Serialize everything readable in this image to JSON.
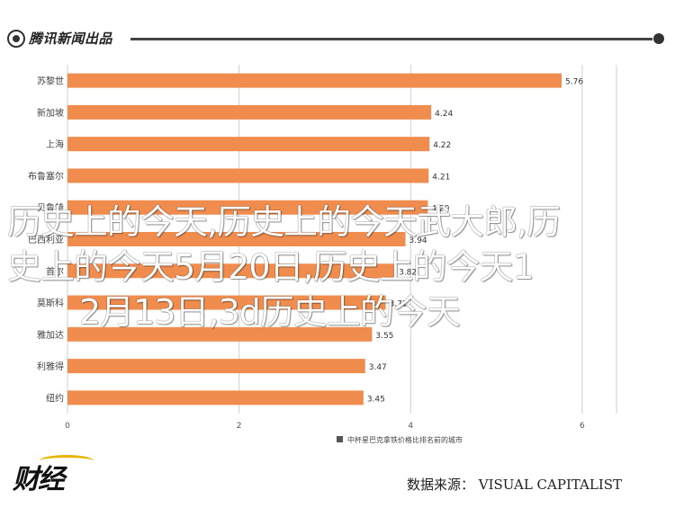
{
  "header": {
    "logo_text": "腾讯新闻出品"
  },
  "chart_data": {
    "type": "bar",
    "orientation": "horizontal",
    "categories": [
      "苏黎世",
      "新加坡",
      "上海",
      "布鲁塞尔",
      "贝鲁特",
      "巴西利亚",
      "首尔",
      "莫斯科",
      "雅加达",
      "利雅得",
      "纽约"
    ],
    "values": [
      5.76,
      4.24,
      4.22,
      4.21,
      4.2,
      3.94,
      3.82,
      3.71,
      3.55,
      3.47,
      3.45
    ],
    "value_labels": [
      "5.76",
      "4.24",
      "4.22",
      "4.21",
      "4.20",
      "3.94",
      "3.82",
      "3.71",
      "3.55",
      "3.47",
      "3.45"
    ],
    "xlim": [
      0,
      6.4
    ],
    "xticks": [
      "0",
      "2",
      "4",
      "6"
    ],
    "grid": true,
    "bar_color": "#f08c4d",
    "legend": "中杯星巴克拿铁价格比排名前的城市"
  },
  "watermark": {
    "line1": "历史上的今天,历史上的今天武大郎,历",
    "line2": "史上的今天5月20日,历史上的今天1",
    "line3": "2月13日,3d历史上的今天"
  },
  "brand": {
    "name": "财经"
  },
  "source": {
    "text": "数据来源： VISUAL CAPITALIST"
  }
}
